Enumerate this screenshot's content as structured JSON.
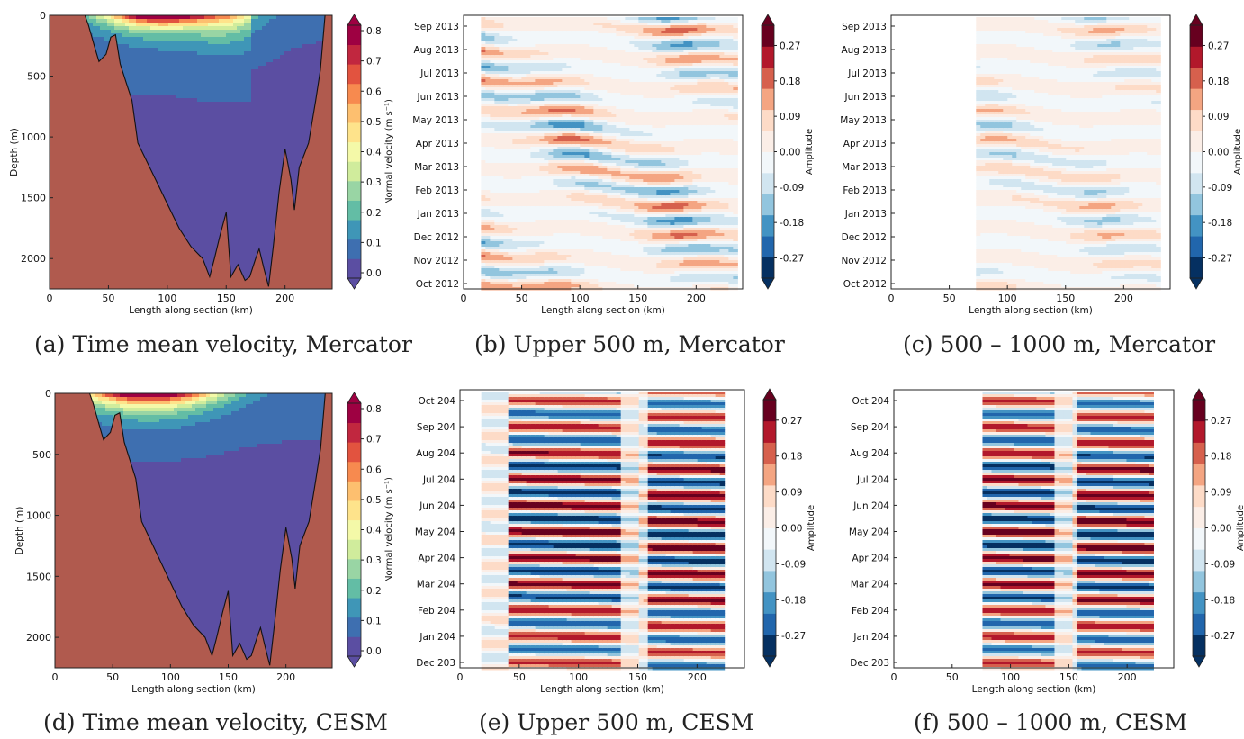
{
  "colors": {
    "land": "#b05a4e",
    "bathy_gap": "#cdcdcd",
    "velocity_scale": [
      "#5b4ea2",
      "#3e6fb0",
      "#3f96b7",
      "#63bda5",
      "#99d5a4",
      "#d0ec9c",
      "#f4f9a8",
      "#fee38b",
      "#fdbf6f",
      "#f78a4f",
      "#e2533f",
      "#c1273f",
      "#9e0142"
    ],
    "amplitude_scale": [
      "#053061",
      "#2166ac",
      "#4393c3",
      "#92c5de",
      "#d1e5f0",
      "#f2f7fa",
      "#fbeee7",
      "#fddbc7",
      "#f4a582",
      "#d6604d",
      "#b2182b",
      "#67001f"
    ]
  },
  "chart_data": [
    {
      "id": "a",
      "type": "contourf",
      "caption": "(a) Time mean velocity, Mercator",
      "xlabel": "Length along section (km)",
      "ylabel": "Depth (m)",
      "xlim": [
        0,
        240
      ],
      "ylim": [
        2250,
        0
      ],
      "xticks": [
        0,
        50,
        100,
        150,
        200
      ],
      "yticks": [
        0,
        500,
        1000,
        1500,
        2000
      ],
      "colorbar": {
        "label": "Normal velocity (m s⁻¹)",
        "ticks": [
          "0.0",
          "0.1",
          "0.2",
          "0.3",
          "0.4",
          "0.5",
          "0.6",
          "0.7",
          "0.8"
        ],
        "extend": "both"
      },
      "bathymetry": [
        [
          0,
          0
        ],
        [
          30,
          0
        ],
        [
          33,
          80
        ],
        [
          38,
          250
        ],
        [
          42,
          380
        ],
        [
          48,
          320
        ],
        [
          52,
          180
        ],
        [
          56,
          160
        ],
        [
          60,
          400
        ],
        [
          65,
          550
        ],
        [
          70,
          700
        ],
        [
          75,
          1050
        ],
        [
          80,
          1150
        ],
        [
          90,
          1350
        ],
        [
          100,
          1550
        ],
        [
          110,
          1750
        ],
        [
          120,
          1900
        ],
        [
          130,
          2000
        ],
        [
          136,
          2150
        ],
        [
          140,
          2000
        ],
        [
          145,
          1800
        ],
        [
          150,
          1620
        ],
        [
          154,
          2150
        ],
        [
          160,
          2050
        ],
        [
          166,
          2180
        ],
        [
          170,
          2150
        ],
        [
          175,
          2000
        ],
        [
          178,
          1920
        ],
        [
          182,
          2080
        ],
        [
          186,
          2230
        ],
        [
          190,
          1900
        ],
        [
          195,
          1450
        ],
        [
          200,
          1100
        ],
        [
          205,
          1350
        ],
        [
          208,
          1600
        ],
        [
          212,
          1250
        ],
        [
          220,
          1050
        ],
        [
          226,
          700
        ],
        [
          230,
          450
        ],
        [
          234,
          0
        ],
        [
          240,
          0
        ]
      ]
    },
    {
      "id": "b",
      "type": "heatmap",
      "caption": "(b) Upper 500 m, Mercator",
      "xlabel": "Length along section (km)",
      "xlim": [
        0,
        240
      ],
      "xticks": [
        0,
        50,
        100,
        150,
        200
      ],
      "yticks": [
        "Oct 2012",
        "Nov 2012",
        "Dec 2012",
        "Jan 2013",
        "Feb 2013",
        "Mar 2013",
        "Apr 2013",
        "May 2013",
        "Jun 2013",
        "Jul 2013",
        "Aug 2013",
        "Sep 2013"
      ],
      "data_x_range": [
        15,
        235
      ],
      "amp": 0.6,
      "colorbar": {
        "label": "Amplitude",
        "ticks": [
          "-0.27",
          "-0.18",
          "-0.09",
          "0.00",
          "0.09",
          "0.18",
          "0.27"
        ],
        "extend": "both"
      }
    },
    {
      "id": "c",
      "type": "heatmap",
      "caption": "(c) 500 – 1000 m, Mercator",
      "xlabel": "Length along section (km)",
      "xlim": [
        0,
        240
      ],
      "xticks": [
        0,
        50,
        100,
        150,
        200
      ],
      "yticks": [
        "Oct 2012",
        "Nov 2012",
        "Dec 2012",
        "Jan 2013",
        "Feb 2013",
        "Mar 2013",
        "Apr 2013",
        "May 2013",
        "Jun 2013",
        "Jul 2013",
        "Aug 2013",
        "Sep 2013"
      ],
      "data_x_range": [
        73,
        228
      ],
      "amp": 0.4,
      "colorbar": {
        "label": "Amplitude",
        "ticks": [
          "-0.27",
          "-0.18",
          "-0.09",
          "0.00",
          "0.09",
          "0.18",
          "0.27"
        ],
        "extend": "both"
      }
    },
    {
      "id": "d",
      "type": "contourf",
      "caption": "(d) Time mean velocity, CESM",
      "xlabel": "Length along section (km)",
      "ylabel": "Depth (m)",
      "xlim": [
        0,
        240
      ],
      "ylim": [
        2250,
        0
      ],
      "xticks": [
        0,
        50,
        100,
        150,
        200
      ],
      "yticks": [
        0,
        500,
        1000,
        1500,
        2000
      ],
      "colorbar": {
        "label": "Normal velocity (m s⁻¹)",
        "ticks": [
          "0.0",
          "0.1",
          "0.2",
          "0.3",
          "0.4",
          "0.5",
          "0.6",
          "0.7",
          "0.8"
        ],
        "extend": "both"
      },
      "bathymetry": [
        [
          0,
          0
        ],
        [
          30,
          0
        ],
        [
          33,
          80
        ],
        [
          38,
          250
        ],
        [
          42,
          380
        ],
        [
          48,
          320
        ],
        [
          52,
          180
        ],
        [
          56,
          160
        ],
        [
          60,
          400
        ],
        [
          65,
          550
        ],
        [
          70,
          700
        ],
        [
          75,
          1050
        ],
        [
          80,
          1150
        ],
        [
          90,
          1350
        ],
        [
          100,
          1550
        ],
        [
          110,
          1750
        ],
        [
          120,
          1900
        ],
        [
          130,
          2000
        ],
        [
          136,
          2150
        ],
        [
          140,
          2000
        ],
        [
          145,
          1800
        ],
        [
          150,
          1620
        ],
        [
          154,
          2150
        ],
        [
          160,
          2050
        ],
        [
          166,
          2180
        ],
        [
          170,
          2150
        ],
        [
          175,
          2000
        ],
        [
          178,
          1920
        ],
        [
          182,
          2080
        ],
        [
          186,
          2230
        ],
        [
          190,
          1900
        ],
        [
          195,
          1450
        ],
        [
          200,
          1100
        ],
        [
          205,
          1350
        ],
        [
          208,
          1600
        ],
        [
          212,
          1250
        ],
        [
          220,
          1050
        ],
        [
          226,
          700
        ],
        [
          230,
          450
        ],
        [
          234,
          0
        ],
        [
          240,
          0
        ]
      ]
    },
    {
      "id": "e",
      "type": "heatmap",
      "caption": "(e) Upper 500 m, CESM",
      "xlabel": "Length along section (km)",
      "xlim": [
        0,
        240
      ],
      "xticks": [
        0,
        50,
        100,
        150,
        200
      ],
      "yticks": [
        "Dec 203",
        "Jan 204",
        "Feb 204",
        "Mar 204",
        "Apr 204",
        "May 204",
        "Jun 204",
        "Jul 204",
        "Aug 204",
        "Sep 204",
        "Oct 204"
      ],
      "data_x_range": [
        18,
        222
      ],
      "amp": 1.0,
      "colorbar": {
        "label": "Amplitude",
        "ticks": [
          "-0.27",
          "-0.18",
          "-0.09",
          "0.00",
          "0.09",
          "0.18",
          "0.27"
        ],
        "extend": "both"
      }
    },
    {
      "id": "f",
      "type": "heatmap",
      "caption": "(f) 500 – 1000 m, CESM",
      "xlabel": "Length along section (km)",
      "xlim": [
        0,
        240
      ],
      "xticks": [
        0,
        50,
        100,
        150,
        200
      ],
      "yticks": [
        "Dec 203",
        "Jan 204",
        "Feb 204",
        "Mar 204",
        "Apr 204",
        "May 204",
        "Jun 204",
        "Jul 204",
        "Aug 204",
        "Sep 204",
        "Oct 204"
      ],
      "data_x_range": [
        76,
        222
      ],
      "amp": 1.0,
      "colorbar": {
        "label": "Amplitude",
        "ticks": [
          "-0.27",
          "-0.18",
          "-0.09",
          "0.00",
          "0.09",
          "0.18",
          "0.27"
        ],
        "extend": "both"
      }
    }
  ]
}
